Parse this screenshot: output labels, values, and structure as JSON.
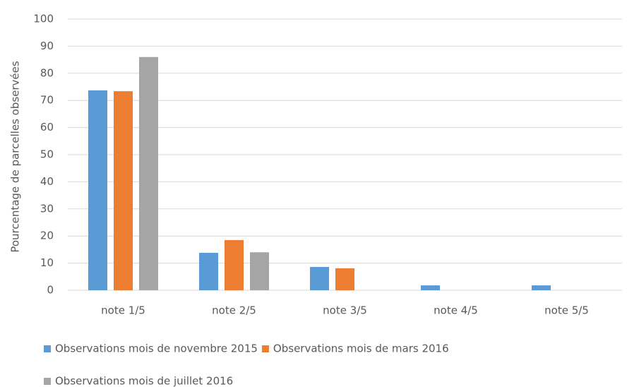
{
  "chart_data": {
    "type": "bar",
    "y_label": "Pourcentage de parcelles observées",
    "categories": [
      "note 1/5",
      "note 2/5",
      "note 3/5",
      "note 4/5",
      "note 5/5"
    ],
    "series": [
      {
        "name": "Observations mois de novembre 2015",
        "color": "#5b9bd5",
        "values": [
          73.7,
          13.8,
          8.6,
          1.8,
          1.8
        ]
      },
      {
        "name": "Observations mois de mars 2016",
        "color": "#ed7d31",
        "values": [
          73.4,
          18.5,
          8.1,
          0,
          0
        ]
      },
      {
        "name": "Observations mois de juillet 2016",
        "color": "#a5a5a5",
        "values": [
          86,
          14,
          0,
          0,
          0
        ]
      }
    ],
    "ylim": [
      0,
      100
    ],
    "yticks": [
      0,
      10,
      20,
      30,
      40,
      50,
      60,
      70,
      80,
      90,
      100
    ],
    "grid": true,
    "legend": "bottom"
  }
}
